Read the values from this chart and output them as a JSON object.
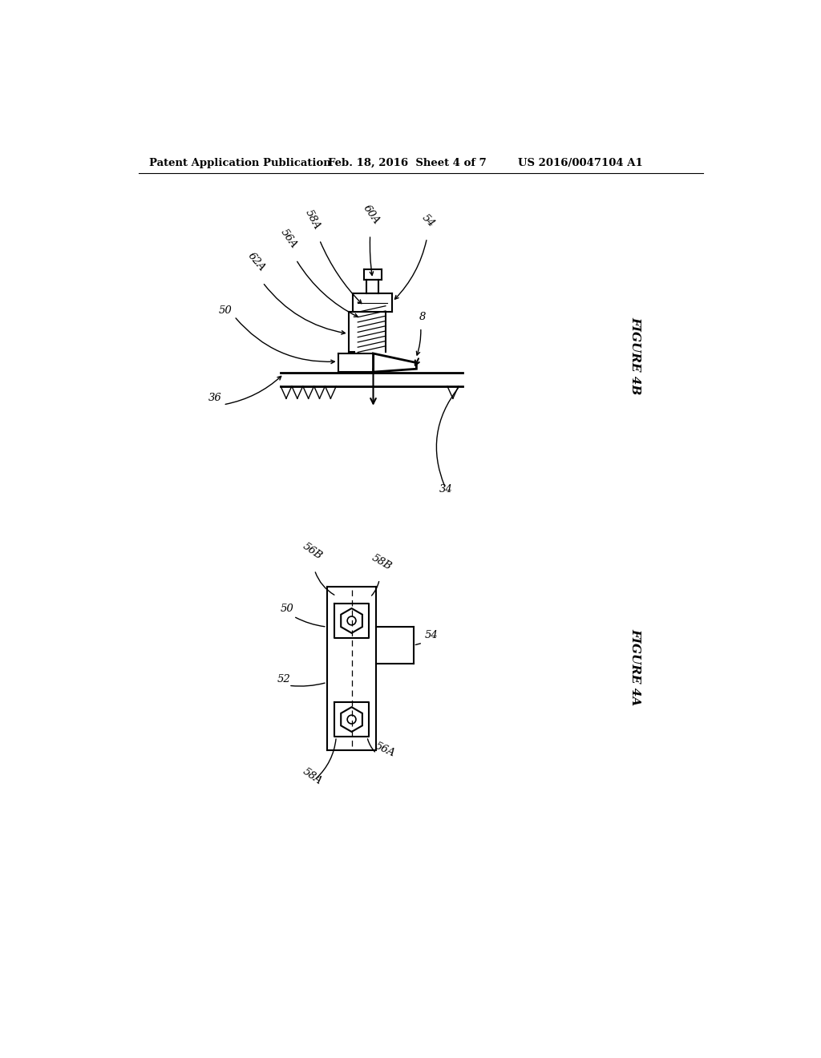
{
  "bg_color": "#ffffff",
  "header_left": "Patent Application Publication",
  "header_center": "Feb. 18, 2016  Sheet 4 of 7",
  "header_right": "US 2016/0047104 A1",
  "fig4b_label": "FIGURE 4B",
  "fig4a_label": "FIGURE 4A",
  "lc": "#000000",
  "lw": 1.5,
  "fs": 9.5,
  "hfs": 9.5
}
